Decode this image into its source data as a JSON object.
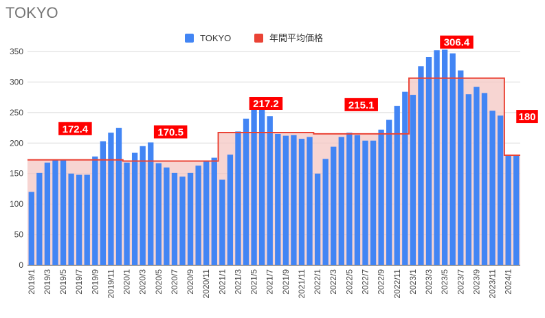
{
  "chart_data": {
    "type": "bar",
    "title": "TOKYO",
    "xlabel": "",
    "ylabel": "",
    "ylim": [
      0,
      350
    ],
    "yticks": [
      0,
      50,
      100,
      150,
      200,
      250,
      300,
      350
    ],
    "grid": true,
    "legend_position": "top",
    "categories": [
      "2019/1",
      "2019/2",
      "2019/3",
      "2019/4",
      "2019/5",
      "2019/6",
      "2019/7",
      "2019/8",
      "2019/9",
      "2019/10",
      "2019/11",
      "2019/12",
      "2020/1",
      "2020/2",
      "2020/3",
      "2020/4",
      "2020/5",
      "2020/6",
      "2020/7",
      "2020/8",
      "2020/9",
      "2020/10",
      "2020/11",
      "2020/12",
      "2021/1",
      "2021/2",
      "2021/3",
      "2021/4",
      "2021/5",
      "2021/6",
      "2021/7",
      "2021/8",
      "2021/9",
      "2021/10",
      "2021/11",
      "2021/12",
      "2022/1",
      "2022/2",
      "2022/3",
      "2022/4",
      "2022/5",
      "2022/6",
      "2022/7",
      "2022/8",
      "2022/9",
      "2022/10",
      "2022/11",
      "2022/12",
      "2023/1",
      "2023/2",
      "2023/3",
      "2023/4",
      "2023/5",
      "2023/6",
      "2023/7",
      "2023/8",
      "2023/9",
      "2023/10",
      "2023/11",
      "2023/12",
      "2024/1",
      "2024/2"
    ],
    "xtick_labels": [
      "2019/1",
      "2019/3",
      "2019/5",
      "2019/7",
      "2019/9",
      "2019/11",
      "2020/1",
      "2020/3",
      "2020/5",
      "2020/7",
      "2020/9",
      "2020/11",
      "2021/1",
      "2021/3",
      "2021/5",
      "2021/7",
      "2021/9",
      "2021/11",
      "2022/1",
      "2022/3",
      "2022/5",
      "2022/7",
      "2022/9",
      "2022/11",
      "2023/1",
      "2023/3",
      "2023/5",
      "2023/7",
      "2023/9",
      "2023/11",
      "2024/1"
    ],
    "series": [
      {
        "name": "TOKYO",
        "type": "bar",
        "color": "#4285F4",
        "values": [
          120,
          151,
          168,
          172,
          172,
          150,
          148,
          148,
          178,
          203,
          217,
          225,
          168,
          184,
          195,
          201,
          167,
          160,
          151,
          145,
          151,
          163,
          170,
          176,
          140,
          181,
          219,
          240,
          256,
          258,
          244,
          215,
          212,
          213,
          207,
          210,
          150,
          174,
          194,
          210,
          217,
          213,
          204,
          204,
          222,
          238,
          261,
          284,
          279,
          326,
          341,
          352,
          353,
          347,
          319,
          280,
          292,
          282,
          253,
          245,
          180,
          180
        ]
      },
      {
        "name": "年間平均価格",
        "type": "step",
        "color": "#EA4335",
        "fill": "#F4C7C3",
        "segments": [
          {
            "start": "2019/1",
            "end": "2019/12",
            "value": 172.4
          },
          {
            "start": "2020/1",
            "end": "2020/12",
            "value": 170.5
          },
          {
            "start": "2021/1",
            "end": "2021/12",
            "value": 217.2
          },
          {
            "start": "2022/1",
            "end": "2022/12",
            "value": 215.1
          },
          {
            "start": "2023/1",
            "end": "2023/12",
            "value": 306.4
          },
          {
            "start": "2024/1",
            "end": "2024/2",
            "value": 180
          }
        ]
      }
    ],
    "annotations": [
      "172.4",
      "170.5",
      "217.2",
      "215.1",
      "306.4",
      "180"
    ]
  }
}
